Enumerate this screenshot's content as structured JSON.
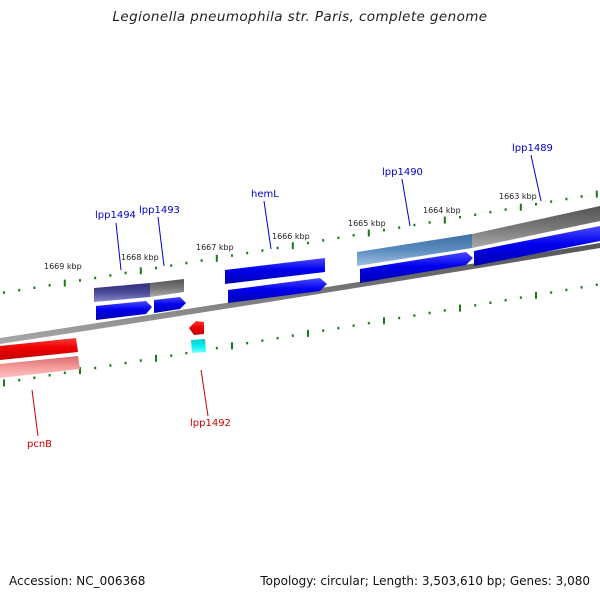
{
  "title": "Legionella pneumophila str. Paris, complete genome",
  "accession": "Accession: NC_006368",
  "topology": "Topology: circular; Length: 3,503,610 bp; Genes: 3,080",
  "colors": {
    "forward_label": "#0000cc",
    "reverse_label": "#cc0000",
    "forward_cds": "#0000ee",
    "reverse_cds": "#ee0000",
    "tick": "#1a7a1a",
    "backbone": "#777777"
  },
  "ticks": [
    {
      "label": "1669 kbp"
    },
    {
      "label": "1668 kbp"
    },
    {
      "label": "1667 kbp"
    },
    {
      "label": "1666 kbp"
    },
    {
      "label": "1665 kbp"
    },
    {
      "label": "1664 kbp"
    },
    {
      "label": "1663 kbp"
    }
  ],
  "forward_genes": [
    {
      "name": "lpp1494"
    },
    {
      "name": "lpp1493"
    },
    {
      "name": "hemL"
    },
    {
      "name": "lpp1490"
    },
    {
      "name": "lpp1489"
    }
  ],
  "reverse_genes": [
    {
      "name": "pcnB"
    },
    {
      "name": "lpp1492"
    }
  ]
}
